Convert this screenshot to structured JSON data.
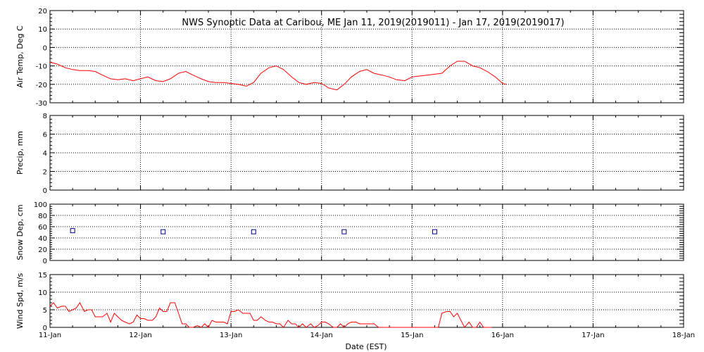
{
  "title": "NWS Synoptic Data at Caribou, ME   Jan 11, 2019(2019011) - Jan 17, 2019(2019017)",
  "xlabel": "Date (EST)",
  "x_tick_labels": [
    "11-Jan",
    "12-Jan",
    "13-Jan",
    "14-Jan",
    "15-Jan",
    "16-Jan",
    "17-Jan",
    "18-Jan"
  ],
  "colors": {
    "series_line": "#ff0000",
    "snow_marker": "#000099",
    "axes": "#000000"
  },
  "chart_data": [
    {
      "type": "line",
      "ylabel": "Air Temp, Deg C",
      "ylim": [
        -30,
        20
      ],
      "y_ticks": [
        -30,
        -20,
        -10,
        0,
        10,
        20
      ],
      "xlim": [
        0,
        7
      ],
      "x_unit": "days since 11-Jan",
      "grid": true,
      "series": [
        {
          "color": "#ff0000",
          "x": [
            0.0,
            0.08,
            0.17,
            0.25,
            0.33,
            0.42,
            0.5,
            0.58,
            0.67,
            0.75,
            0.83,
            0.92,
            1.0,
            1.08,
            1.17,
            1.25,
            1.33,
            1.42,
            1.5,
            1.58,
            1.67,
            1.75,
            1.83,
            1.92,
            2.0,
            2.08,
            2.17,
            2.25,
            2.33,
            2.42,
            2.5,
            2.58,
            2.67,
            2.75,
            2.83,
            2.92,
            3.0,
            3.08,
            3.17,
            3.25,
            3.33,
            3.42,
            3.5,
            3.58,
            3.67,
            3.75,
            3.83,
            3.92,
            4.0,
            4.08,
            4.17,
            4.25,
            4.33,
            4.42,
            4.5,
            4.58,
            4.67,
            4.75,
            4.83,
            4.92,
            5.0,
            5.04
          ],
          "y": [
            -8,
            -9,
            -11,
            -12,
            -12.5,
            -12.5,
            -13,
            -15,
            -17,
            -17.5,
            -17,
            -18,
            -17,
            -16,
            -18,
            -18.5,
            -17,
            -14,
            -13,
            -15,
            -17,
            -18.5,
            -19,
            -19,
            -19.5,
            -20,
            -21,
            -19,
            -14,
            -11,
            -10,
            -12,
            -16,
            -19,
            -20,
            -19,
            -19.5,
            -22,
            -23,
            -20,
            -16,
            -13,
            -12,
            -14,
            -15,
            -16,
            -17.5,
            -18,
            -16,
            -15.5,
            -15,
            -14.5,
            -14,
            -10,
            -7.5,
            -7.5,
            -10,
            -11,
            -13,
            -16,
            -19.5,
            -20
          ]
        }
      ]
    },
    {
      "type": "line",
      "ylabel": "Precip, mm",
      "ylim": [
        0,
        8
      ],
      "y_ticks": [
        0,
        2,
        4,
        6,
        8
      ],
      "xlim": [
        0,
        7
      ],
      "grid": true,
      "series": []
    },
    {
      "type": "scatter",
      "ylabel": "Snow Dep, cm",
      "ylim": [
        0,
        100
      ],
      "y_ticks": [
        0,
        20,
        40,
        60,
        80,
        100
      ],
      "xlim": [
        0,
        7
      ],
      "grid": true,
      "series": [
        {
          "color": "#000099",
          "x": [
            0.25,
            1.25,
            2.25,
            3.25,
            4.25
          ],
          "y": [
            53,
            51,
            51,
            51,
            51
          ]
        }
      ]
    },
    {
      "type": "line",
      "ylabel": "Wind Spd, m/s",
      "ylim": [
        0,
        15
      ],
      "y_ticks": [
        0,
        5,
        10,
        15
      ],
      "xlim": [
        0,
        7
      ],
      "grid": true,
      "series": [
        {
          "color": "#ff0000",
          "x": [
            0.0,
            0.04,
            0.08,
            0.13,
            0.17,
            0.21,
            0.25,
            0.29,
            0.33,
            0.38,
            0.42,
            0.46,
            0.5,
            0.54,
            0.58,
            0.63,
            0.67,
            0.71,
            0.75,
            0.79,
            0.83,
            0.88,
            0.92,
            0.96,
            1.0,
            1.04,
            1.08,
            1.13,
            1.17,
            1.21,
            1.25,
            1.29,
            1.33,
            1.38,
            1.42,
            1.46,
            1.5,
            1.54,
            1.58,
            1.63,
            1.67,
            1.71,
            1.75,
            1.79,
            1.83,
            1.88,
            1.92,
            1.96,
            2.0,
            2.04,
            2.08,
            2.13,
            2.17,
            2.21,
            2.25,
            2.29,
            2.33,
            2.38,
            2.42,
            2.46,
            2.5,
            2.54,
            2.58,
            2.63,
            2.67,
            2.71,
            2.75,
            2.79,
            2.83,
            2.88,
            2.92,
            2.96,
            3.0,
            3.04,
            3.08,
            3.13,
            3.17,
            3.21,
            3.25,
            3.29,
            3.33,
            3.38,
            3.42,
            3.46,
            3.5,
            3.54,
            3.58,
            3.63,
            3.67,
            3.71,
            3.75,
            3.79,
            3.83,
            3.88,
            3.92,
            3.96,
            4.0,
            4.25,
            4.29,
            4.33,
            4.38,
            4.42,
            4.46,
            4.5,
            4.54,
            4.58,
            4.63,
            4.67,
            4.71,
            4.75,
            4.79,
            4.83,
            4.88
          ],
          "y": [
            6,
            7,
            5.5,
            6,
            6,
            4.5,
            5,
            5.5,
            7,
            4.5,
            5,
            5,
            3,
            3,
            3,
            4,
            1.5,
            4,
            3,
            2,
            1.5,
            1,
            1.5,
            3.5,
            2.5,
            2.5,
            2,
            2,
            3,
            5.5,
            4.5,
            4.5,
            7,
            7,
            4,
            1,
            1,
            0,
            0,
            0.5,
            0,
            1,
            0,
            2,
            1.5,
            1.5,
            1.5,
            1,
            4.5,
            4.5,
            5,
            4,
            4,
            4,
            2,
            2,
            3,
            2,
            1.5,
            1.5,
            1,
            1,
            0,
            2,
            1,
            1,
            0,
            1,
            0,
            1,
            0,
            0.5,
            1.5,
            1.5,
            1,
            0,
            0,
            1,
            0,
            1,
            1.5,
            1.5,
            1,
            1,
            1,
            1,
            1,
            0,
            0,
            0,
            0,
            0,
            0,
            0,
            0,
            0,
            0,
            0,
            0,
            4,
            4.5,
            4.5,
            3,
            4,
            2,
            0,
            1.5,
            0,
            0,
            1.5,
            0,
            0,
            0
          ]
        }
      ]
    }
  ]
}
